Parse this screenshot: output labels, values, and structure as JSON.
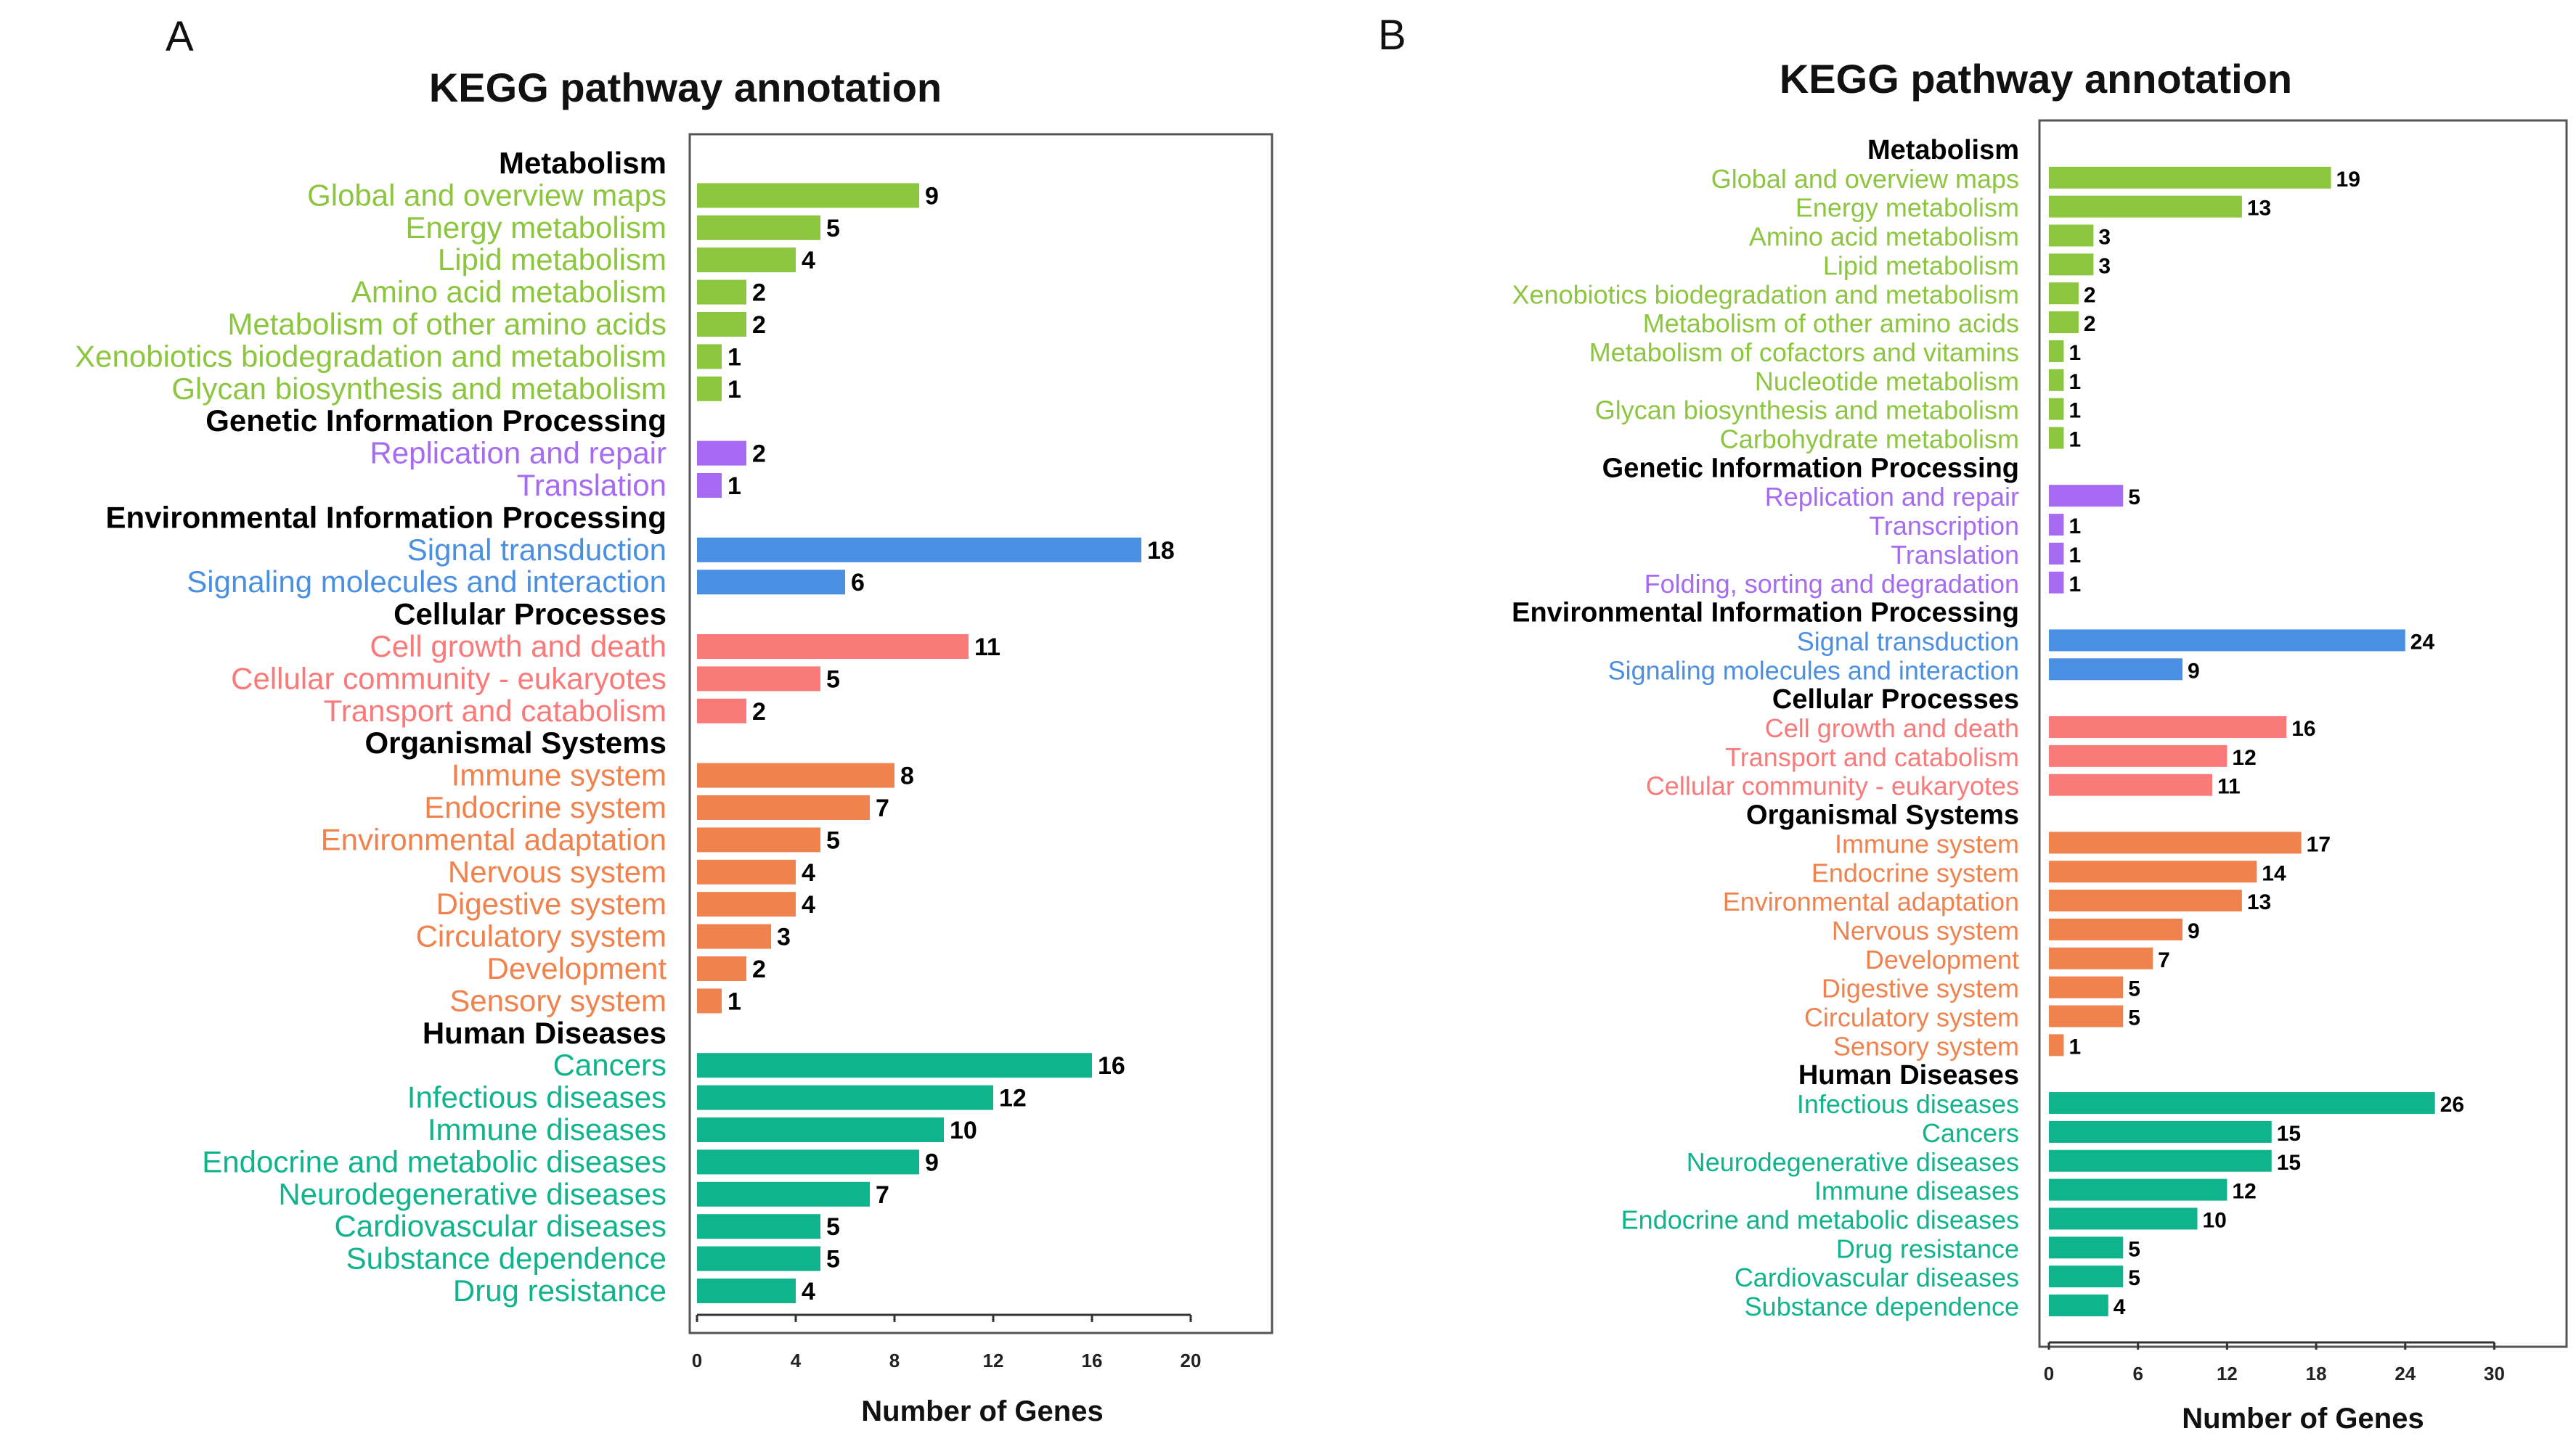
{
  "chart_data": [
    {
      "panel": "A",
      "type": "bar",
      "orientation": "horizontal",
      "title": "KEGG pathway annotation",
      "xlabel": "Number of Genes",
      "ylabel": "",
      "xlim": [
        0,
        23
      ],
      "xticks": [
        0,
        4,
        8,
        12,
        16,
        20
      ],
      "grid": false,
      "colors": {
        "Metabolism": "#8cc63f",
        "Genetic Information Processing": "#a66bf2",
        "Environmental Information Processing": "#4a90e2",
        "Cellular Processes": "#fa7a7a",
        "Organismal Systems": "#f0824d",
        "Human Diseases": "#0fb48c"
      },
      "groups": [
        {
          "name": "Metabolism",
          "items": [
            {
              "label": "Global and overview maps",
              "value": 9
            },
            {
              "label": "Energy metabolism",
              "value": 5
            },
            {
              "label": "Lipid metabolism",
              "value": 4
            },
            {
              "label": "Amino acid metabolism",
              "value": 2
            },
            {
              "label": "Metabolism of other amino acids",
              "value": 2
            },
            {
              "label": "Xenobiotics biodegradation and metabolism",
              "value": 1
            },
            {
              "label": "Glycan biosynthesis and metabolism",
              "value": 1
            }
          ]
        },
        {
          "name": "Genetic Information Processing",
          "items": [
            {
              "label": "Replication and repair",
              "value": 2
            },
            {
              "label": "Translation",
              "value": 1
            }
          ]
        },
        {
          "name": "Environmental Information Processing",
          "items": [
            {
              "label": "Signal transduction",
              "value": 18
            },
            {
              "label": "Signaling molecules and interaction",
              "value": 6
            }
          ]
        },
        {
          "name": "Cellular Processes",
          "items": [
            {
              "label": "Cell growth and death",
              "value": 11
            },
            {
              "label": "Cellular community - eukaryotes",
              "value": 5
            },
            {
              "label": "Transport and catabolism",
              "value": 2
            }
          ]
        },
        {
          "name": "Organismal Systems",
          "items": [
            {
              "label": "Immune system",
              "value": 8
            },
            {
              "label": "Endocrine system",
              "value": 7
            },
            {
              "label": "Environmental adaptation",
              "value": 5
            },
            {
              "label": "Nervous system",
              "value": 4
            },
            {
              "label": "Digestive system",
              "value": 4
            },
            {
              "label": "Circulatory system",
              "value": 3
            },
            {
              "label": "Development",
              "value": 2
            },
            {
              "label": "Sensory system",
              "value": 1
            }
          ]
        },
        {
          "name": "Human Diseases",
          "items": [
            {
              "label": "Cancers",
              "value": 16
            },
            {
              "label": "Infectious diseases",
              "value": 12
            },
            {
              "label": "Immune diseases",
              "value": 10
            },
            {
              "label": "Endocrine and metabolic diseases",
              "value": 9
            },
            {
              "label": "Neurodegenerative diseases",
              "value": 7
            },
            {
              "label": "Cardiovascular diseases",
              "value": 5
            },
            {
              "label": "Substance dependence",
              "value": 5
            },
            {
              "label": "Drug resistance",
              "value": 4
            }
          ]
        }
      ]
    },
    {
      "panel": "B",
      "type": "bar",
      "orientation": "horizontal",
      "title": "KEGG pathway annotation",
      "xlabel": "Number of Genes",
      "ylabel": "",
      "xlim": [
        0,
        35
      ],
      "xticks": [
        0,
        6,
        12,
        18,
        24,
        30
      ],
      "grid": false,
      "colors": {
        "Metabolism": "#8cc63f",
        "Genetic Information Processing": "#a66bf2",
        "Environmental Information Processing": "#4a90e2",
        "Cellular Processes": "#fa7a7a",
        "Organismal Systems": "#f0824d",
        "Human Diseases": "#0fb48c"
      },
      "groups": [
        {
          "name": "Metabolism",
          "items": [
            {
              "label": "Global and overview maps",
              "value": 19
            },
            {
              "label": "Energy metabolism",
              "value": 13
            },
            {
              "label": "Amino acid metabolism",
              "value": 3
            },
            {
              "label": "Lipid metabolism",
              "value": 3
            },
            {
              "label": "Xenobiotics biodegradation and metabolism",
              "value": 2
            },
            {
              "label": "Metabolism of other amino acids",
              "value": 2
            },
            {
              "label": "Metabolism of cofactors and vitamins",
              "value": 1
            },
            {
              "label": "Nucleotide metabolism",
              "value": 1
            },
            {
              "label": "Glycan biosynthesis and metabolism",
              "value": 1
            },
            {
              "label": "Carbohydrate metabolism",
              "value": 1
            }
          ]
        },
        {
          "name": "Genetic Information Processing",
          "items": [
            {
              "label": "Replication and repair",
              "value": 5
            },
            {
              "label": "Transcription",
              "value": 1
            },
            {
              "label": "Translation",
              "value": 1
            },
            {
              "label": "Folding, sorting and degradation",
              "value": 1
            }
          ]
        },
        {
          "name": "Environmental Information Processing",
          "items": [
            {
              "label": "Signal transduction",
              "value": 24
            },
            {
              "label": "Signaling molecules and interaction",
              "value": 9
            }
          ]
        },
        {
          "name": "Cellular Processes",
          "items": [
            {
              "label": "Cell growth and death",
              "value": 16
            },
            {
              "label": "Transport and catabolism",
              "value": 12
            },
            {
              "label": "Cellular community - eukaryotes",
              "value": 11
            }
          ]
        },
        {
          "name": "Organismal Systems",
          "items": [
            {
              "label": "Immune system",
              "value": 17
            },
            {
              "label": "Endocrine system",
              "value": 14
            },
            {
              "label": "Environmental adaptation",
              "value": 13
            },
            {
              "label": "Nervous system",
              "value": 9
            },
            {
              "label": "Development",
              "value": 7
            },
            {
              "label": "Digestive system",
              "value": 5
            },
            {
              "label": "Circulatory system",
              "value": 5
            },
            {
              "label": "Sensory system",
              "value": 1
            }
          ]
        },
        {
          "name": "Human Diseases",
          "items": [
            {
              "label": "Infectious diseases",
              "value": 26
            },
            {
              "label": "Cancers",
              "value": 15
            },
            {
              "label": "Neurodegenerative diseases",
              "value": 15
            },
            {
              "label": "Immune diseases",
              "value": 12
            },
            {
              "label": "Endocrine and metabolic diseases",
              "value": 10
            },
            {
              "label": "Drug resistance",
              "value": 5
            },
            {
              "label": "Cardiovascular diseases",
              "value": 5
            },
            {
              "label": "Substance dependence",
              "value": 4
            }
          ]
        }
      ]
    }
  ]
}
